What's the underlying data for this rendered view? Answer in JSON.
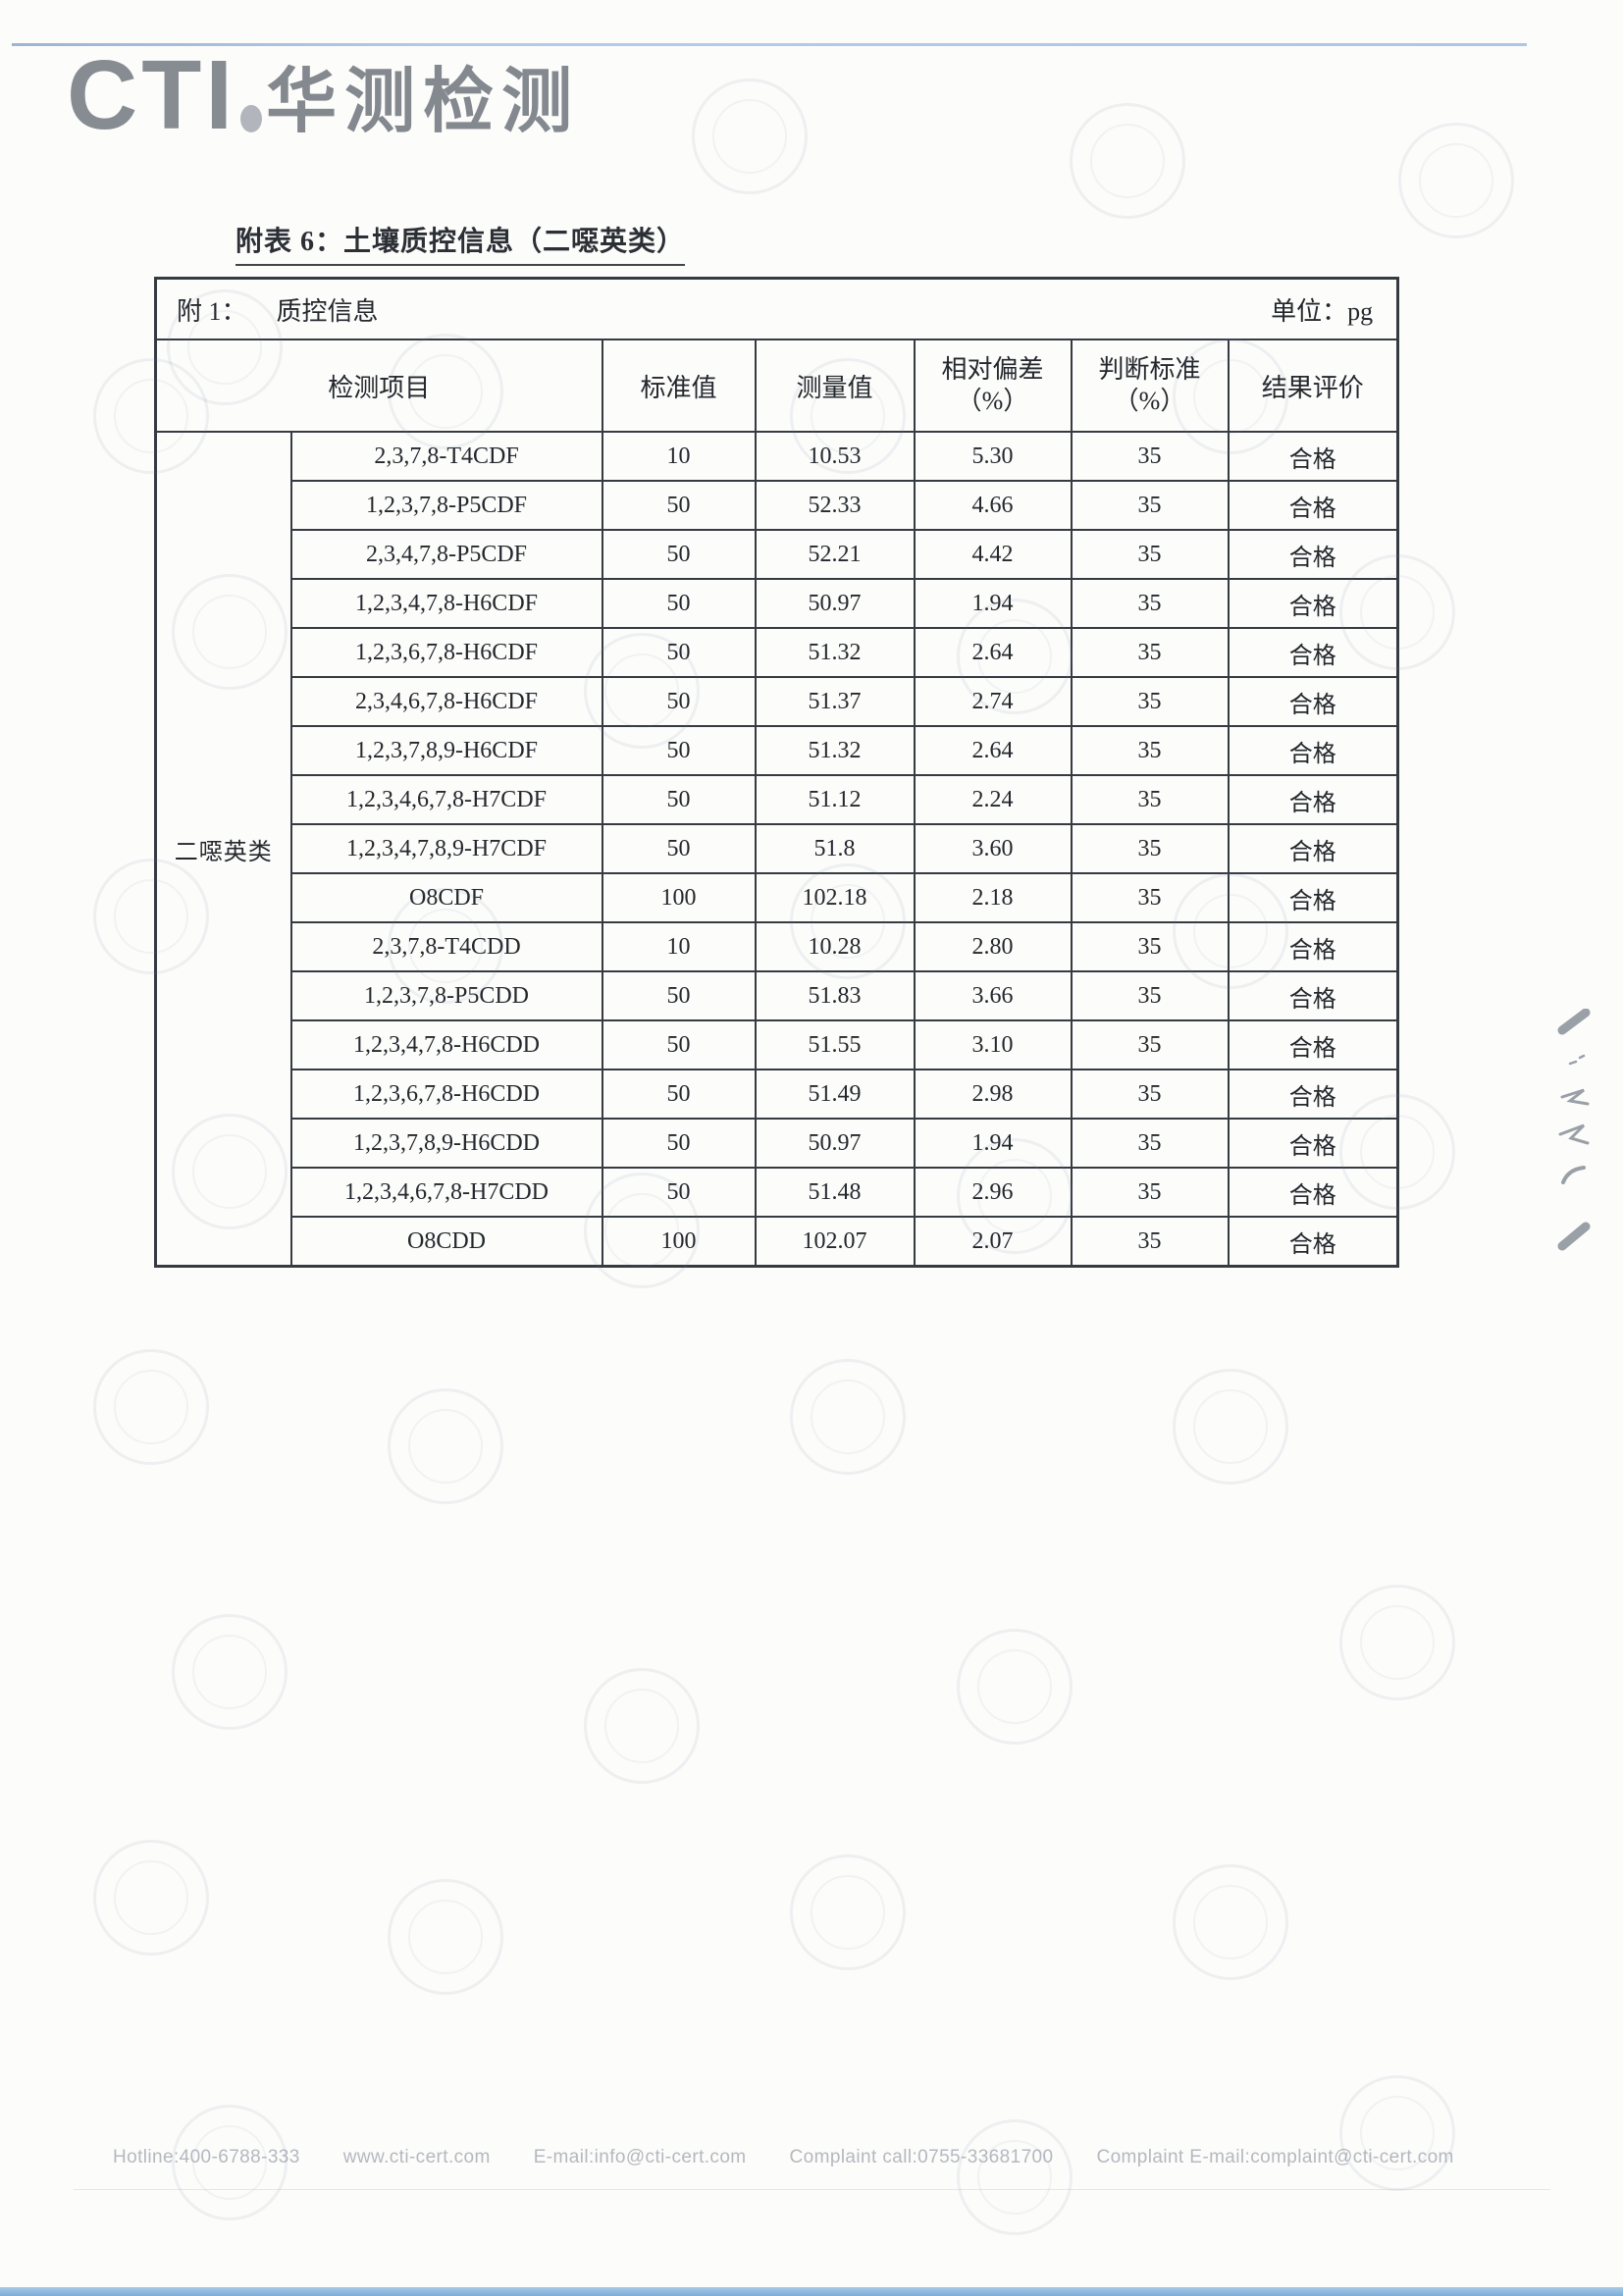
{
  "logo": {
    "cti": "CTI",
    "cn": "华测检测"
  },
  "title": "附表 6：土壤质控信息（二噁英类）",
  "table": {
    "caption_label": "附 1：",
    "caption_text": "质控信息",
    "unit": "单位：pg",
    "headers": {
      "item": "检测项目",
      "standard": "标准值",
      "measured": "测量值",
      "deviation_line1": "相对偏差",
      "deviation_line2": "（%）",
      "criterion_line1": "判断标准",
      "criterion_line2": "（%）",
      "result": "结果评价"
    },
    "category": "二噁英类",
    "rows": [
      {
        "name": "2,3,7,8-T4CDF",
        "standard": "10",
        "measured": "10.53",
        "deviation": "5.30",
        "criterion": "35",
        "result": "合格"
      },
      {
        "name": "1,2,3,7,8-P5CDF",
        "standard": "50",
        "measured": "52.33",
        "deviation": "4.66",
        "criterion": "35",
        "result": "合格"
      },
      {
        "name": "2,3,4,7,8-P5CDF",
        "standard": "50",
        "measured": "52.21",
        "deviation": "4.42",
        "criterion": "35",
        "result": "合格"
      },
      {
        "name": "1,2,3,4,7,8-H6CDF",
        "standard": "50",
        "measured": "50.97",
        "deviation": "1.94",
        "criterion": "35",
        "result": "合格"
      },
      {
        "name": "1,2,3,6,7,8-H6CDF",
        "standard": "50",
        "measured": "51.32",
        "deviation": "2.64",
        "criterion": "35",
        "result": "合格"
      },
      {
        "name": "2,3,4,6,7,8-H6CDF",
        "standard": "50",
        "measured": "51.37",
        "deviation": "2.74",
        "criterion": "35",
        "result": "合格"
      },
      {
        "name": "1,2,3,7,8,9-H6CDF",
        "standard": "50",
        "measured": "51.32",
        "deviation": "2.64",
        "criterion": "35",
        "result": "合格"
      },
      {
        "name": "1,2,3,4,6,7,8-H7CDF",
        "standard": "50",
        "measured": "51.12",
        "deviation": "2.24",
        "criterion": "35",
        "result": "合格"
      },
      {
        "name": "1,2,3,4,7,8,9-H7CDF",
        "standard": "50",
        "measured": "51.8",
        "deviation": "3.60",
        "criterion": "35",
        "result": "合格"
      },
      {
        "name": "O8CDF",
        "standard": "100",
        "measured": "102.18",
        "deviation": "2.18",
        "criterion": "35",
        "result": "合格"
      },
      {
        "name": "2,3,7,8-T4CDD",
        "standard": "10",
        "measured": "10.28",
        "deviation": "2.80",
        "criterion": "35",
        "result": "合格"
      },
      {
        "name": "1,2,3,7,8-P5CDD",
        "standard": "50",
        "measured": "51.83",
        "deviation": "3.66",
        "criterion": "35",
        "result": "合格"
      },
      {
        "name": "1,2,3,4,7,8-H6CDD",
        "standard": "50",
        "measured": "51.55",
        "deviation": "3.10",
        "criterion": "35",
        "result": "合格"
      },
      {
        "name": "1,2,3,6,7,8-H6CDD",
        "standard": "50",
        "measured": "51.49",
        "deviation": "2.98",
        "criterion": "35",
        "result": "合格"
      },
      {
        "name": "1,2,3,7,8,9-H6CDD",
        "standard": "50",
        "measured": "50.97",
        "deviation": "1.94",
        "criterion": "35",
        "result": "合格"
      },
      {
        "name": "1,2,3,4,6,7,8-H7CDD",
        "standard": "50",
        "measured": "51.48",
        "deviation": "2.96",
        "criterion": "35",
        "result": "合格"
      },
      {
        "name": "O8CDD",
        "standard": "100",
        "measured": "102.07",
        "deviation": "2.07",
        "criterion": "35",
        "result": "合格"
      }
    ]
  },
  "footer": {
    "items": [
      "Hotline:400-6788-333",
      "www.cti-cert.com",
      "E-mail:info@cti-cert.com",
      "Complaint call:0755-33681700",
      "Complaint E-mail:complaint@cti-cert.com"
    ]
  }
}
